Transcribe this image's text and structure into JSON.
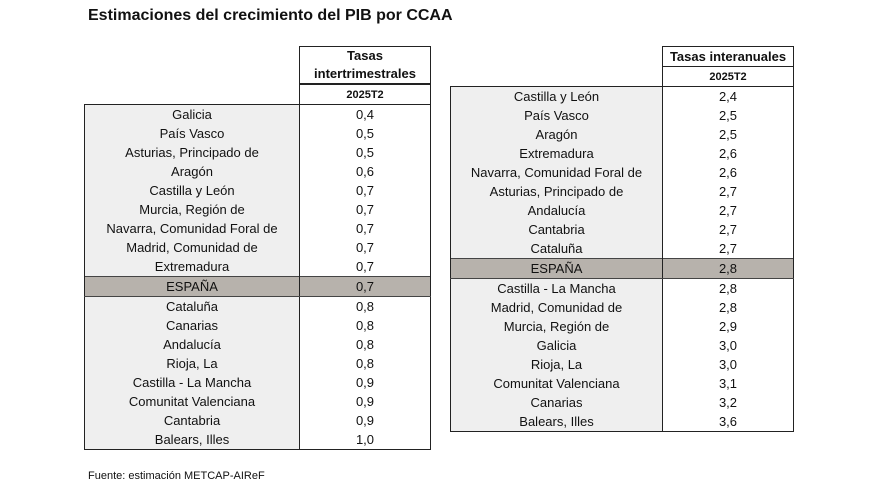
{
  "title": "Estimaciones del crecimiento del PIB por CCAA",
  "source": "Fuente: estimación METCAP-AIReF",
  "left_table": {
    "header_line1": "Tasas",
    "header_line2": "intertrimestrales",
    "period": "2025T2",
    "rows": [
      {
        "region": "Galicia",
        "value": "0,4"
      },
      {
        "region": "País Vasco",
        "value": "0,5"
      },
      {
        "region": "Asturias, Principado de",
        "value": "0,5"
      },
      {
        "region": "Aragón",
        "value": "0,6"
      },
      {
        "region": "Castilla y León",
        "value": "0,7"
      },
      {
        "region": "Murcia, Región de",
        "value": "0,7"
      },
      {
        "region": "Navarra, Comunidad Foral de",
        "value": "0,7"
      },
      {
        "region": "Madrid, Comunidad de",
        "value": "0,7"
      },
      {
        "region": "Extremadura",
        "value": "0,7"
      },
      {
        "region": "ESPAÑA",
        "value": "0,7",
        "highlight": true
      },
      {
        "region": "Cataluña",
        "value": "0,8"
      },
      {
        "region": "Canarias",
        "value": "0,8"
      },
      {
        "region": "Andalucía",
        "value": "0,8"
      },
      {
        "region": "Rioja, La",
        "value": "0,8"
      },
      {
        "region": "Castilla - La Mancha",
        "value": "0,9"
      },
      {
        "region": "Comunitat Valenciana",
        "value": "0,9"
      },
      {
        "region": "Cantabria",
        "value": "0,9"
      },
      {
        "region": "Balears, Illes",
        "value": "1,0"
      }
    ]
  },
  "right_table": {
    "header": "Tasas interanuales",
    "period": "2025T2",
    "rows": [
      {
        "region": "Castilla y León",
        "value": "2,4"
      },
      {
        "region": "País Vasco",
        "value": "2,5"
      },
      {
        "region": "Aragón",
        "value": "2,5"
      },
      {
        "region": "Extremadura",
        "value": "2,6"
      },
      {
        "region": "Navarra, Comunidad Foral de",
        "value": "2,6"
      },
      {
        "region": "Asturias, Principado de",
        "value": "2,7"
      },
      {
        "region": "Andalucía",
        "value": "2,7"
      },
      {
        "region": "Cantabria",
        "value": "2,7"
      },
      {
        "region": "Cataluña",
        "value": "2,7"
      },
      {
        "region": "ESPAÑA",
        "value": "2,8",
        "highlight": true
      },
      {
        "region": "Castilla - La Mancha",
        "value": "2,8"
      },
      {
        "region": "Madrid, Comunidad de",
        "value": "2,8"
      },
      {
        "region": "Murcia, Región de",
        "value": "2,9"
      },
      {
        "region": "Galicia",
        "value": "3,0"
      },
      {
        "region": "Rioja, La",
        "value": "3,0"
      },
      {
        "region": "Comunitat Valenciana",
        "value": "3,1"
      },
      {
        "region": "Canarias",
        "value": "3,2"
      },
      {
        "region": "Balears, Illes",
        "value": "3,6"
      }
    ]
  },
  "colors": {
    "region_cell_bg": "#efefef",
    "highlight_bg": "#b7b2ac",
    "border": "#222222"
  }
}
